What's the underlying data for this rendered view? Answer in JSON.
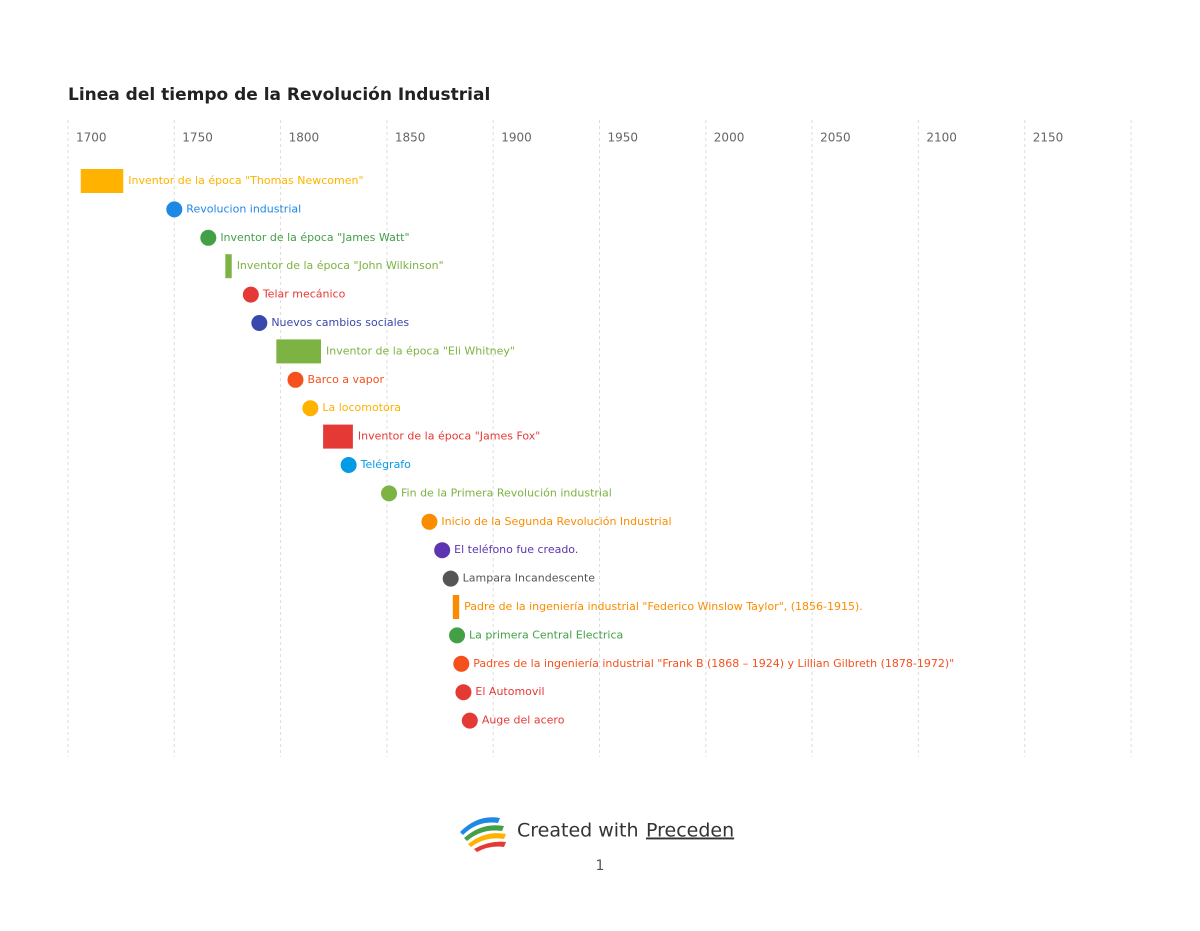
{
  "chart_data": {
    "type": "timeline",
    "title": "Linea del tiempo de la Revolución Industrial",
    "xlim": [
      1700,
      2200
    ],
    "xticks": [
      1700,
      1750,
      1800,
      1850,
      1900,
      1950,
      2000,
      2050,
      2100,
      2150
    ],
    "grid": true,
    "events": [
      {
        "label": "Inventor de la época \"Thomas Newcomen\"",
        "start": 1706,
        "end": 1726,
        "color": "#FFB300"
      },
      {
        "label": "Revolucion industrial",
        "start": 1750,
        "color": "#1E88E5"
      },
      {
        "label": "Inventor de la época \"James Watt\"",
        "start": 1766,
        "color": "#43A047"
      },
      {
        "label": "Inventor de la época \"John Wilkinson\"",
        "start": 1774,
        "end": 1777,
        "color": "#7CB342"
      },
      {
        "label": "Telar mecánico",
        "start": 1786,
        "color": "#E53935"
      },
      {
        "label": "Nuevos cambios sociales",
        "start": 1790,
        "color": "#3949AB"
      },
      {
        "label": "Inventor de la época \"Eli Whitney\"",
        "start": 1798,
        "end": 1819,
        "color": "#7CB342"
      },
      {
        "label": "Barco a vapor",
        "start": 1807,
        "color": "#F4511E"
      },
      {
        "label": "La locomotora",
        "start": 1814,
        "color": "#FFB300"
      },
      {
        "label": "Inventor de la época \"James Fox\"",
        "start": 1820,
        "end": 1834,
        "color": "#E53935"
      },
      {
        "label": "Telégrafo",
        "start": 1832,
        "color": "#039BE5"
      },
      {
        "label": "Fin de la Primera Revolución industrial",
        "start": 1851,
        "color": "#7CB342"
      },
      {
        "label": "Inicio de la Segunda Revolución Industrial",
        "start": 1870,
        "color": "#FB8C00"
      },
      {
        "label": "El teléfono fue creado.",
        "start": 1876,
        "color": "#5E35B1"
      },
      {
        "label": "Lampara Incandescente",
        "start": 1880,
        "color": "#555555"
      },
      {
        "label": "Padre de la ingeniería industrial \"Federico Winslow Taylor\", (1856-1915).",
        "start": 1881,
        "end": 1884,
        "color": "#FB8C00"
      },
      {
        "label": "La primera Central Electrica",
        "start": 1883,
        "color": "#43A047"
      },
      {
        "label": "Padres de la ingeniería industrial \"Frank B (1868 – 1924) y Lillian Gilbreth (1878-1972)\"",
        "start": 1885,
        "color": "#F4511E"
      },
      {
        "label": "El Automovil",
        "start": 1886,
        "color": "#E53935"
      },
      {
        "label": "Auge del acero",
        "start": 1889,
        "color": "#E53935"
      }
    ]
  },
  "footer": {
    "text": "Created with",
    "link": "Preceden",
    "page_number": "1"
  }
}
